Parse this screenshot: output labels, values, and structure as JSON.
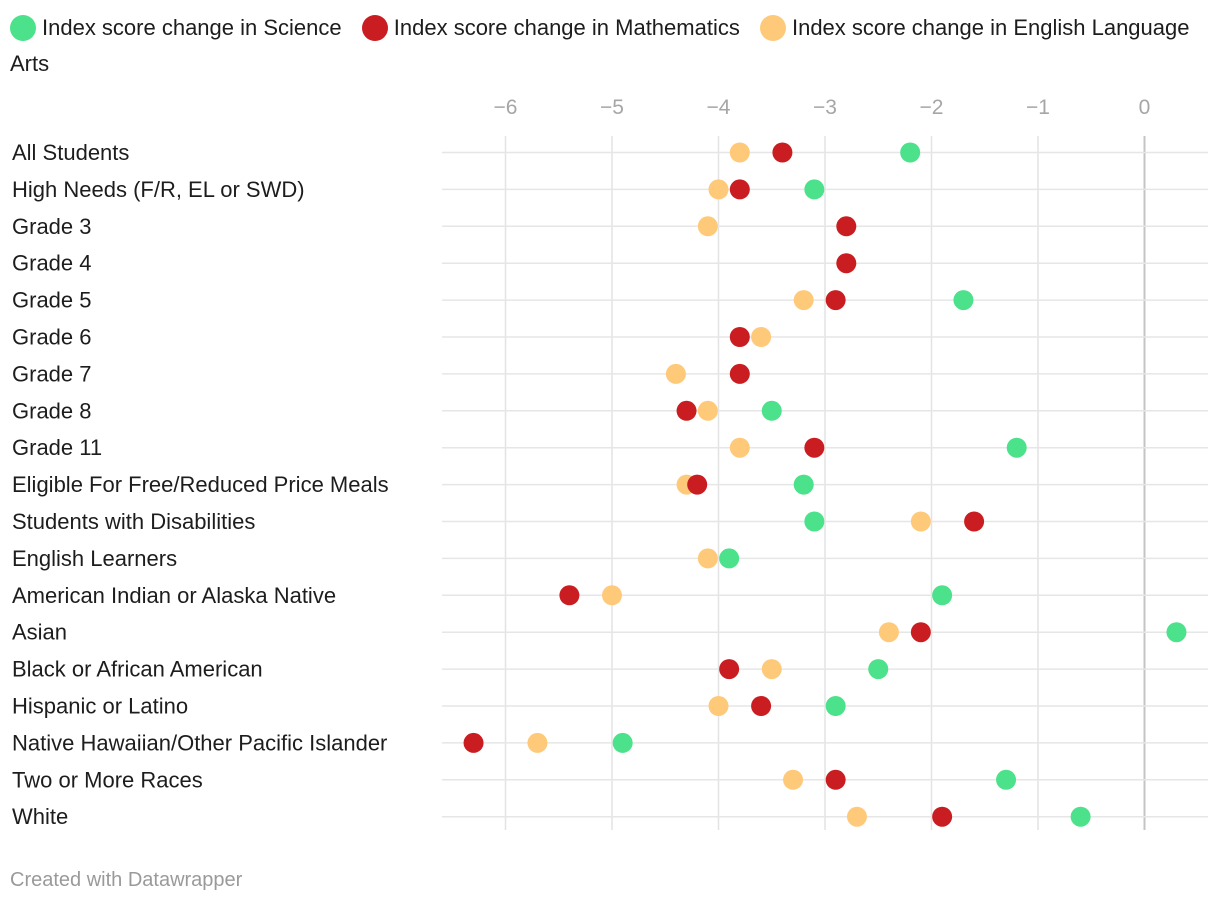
{
  "legend": [
    {
      "label": "Index score change in Science",
      "color": "#4ce18b"
    },
    {
      "label": "Index score change in Mathematics",
      "color": "#c91d22"
    },
    {
      "label": "Index score change in English Language Arts",
      "color": "#ffc97a"
    }
  ],
  "footer": "Created with Datawrapper",
  "chart_data": {
    "type": "scatter",
    "title": "",
    "xlabel": "",
    "ylabel": "",
    "xlim": [
      -6.6,
      0.6
    ],
    "xticks": [
      -6,
      -5,
      -4,
      -3,
      -2,
      -1,
      0
    ],
    "xtick_labels": [
      "−6",
      "−5",
      "−4",
      "−3",
      "−2",
      "−1",
      "0"
    ],
    "grid": true,
    "legend_position": "top",
    "categories": [
      "All Students",
      "High Needs (F/R, EL or SWD)",
      "Grade 3",
      "Grade 4",
      "Grade 5",
      "Grade 6",
      "Grade 7",
      "Grade 8",
      "Grade 11",
      "Eligible For Free/Reduced Price Meals",
      "Students with Disabilities",
      "English Learners",
      "American Indian or Alaska Native",
      "Asian",
      "Black or African American",
      "Hispanic or Latino",
      "Native Hawaiian/Other Pacific Islander",
      "Two or More Races",
      "White"
    ],
    "series": [
      {
        "name": "Index score change in Science",
        "color": "#4ce18b",
        "values": [
          -2.2,
          -3.1,
          null,
          null,
          -1.7,
          null,
          null,
          -3.5,
          -1.2,
          -3.2,
          -3.1,
          -3.9,
          -1.9,
          0.3,
          -2.5,
          -2.9,
          -4.9,
          -1.3,
          -0.6
        ]
      },
      {
        "name": "Index score change in Mathematics",
        "color": "#c91d22",
        "values": [
          -3.4,
          -3.8,
          -2.8,
          -2.8,
          -2.9,
          -3.8,
          -3.8,
          -4.3,
          -3.1,
          -4.2,
          -1.6,
          null,
          -5.4,
          -2.1,
          -3.9,
          -3.6,
          -6.3,
          -2.9,
          -1.9
        ]
      },
      {
        "name": "Index score change in English Language Arts",
        "color": "#ffc97a",
        "values": [
          -3.8,
          -4.0,
          -4.1,
          null,
          -3.2,
          -3.6,
          -4.4,
          -4.1,
          -3.8,
          -4.3,
          -2.1,
          -4.1,
          -5.0,
          -2.4,
          -3.5,
          -4.0,
          -5.7,
          -3.3,
          -2.7
        ]
      }
    ]
  }
}
